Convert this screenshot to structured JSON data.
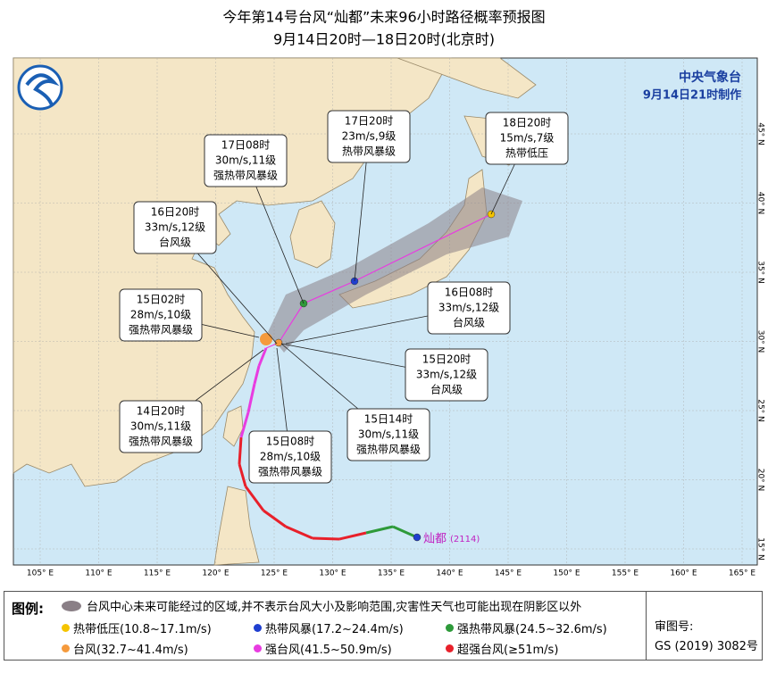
{
  "header": {
    "title": "今年第14号台风“灿都”未来96小时路径概率预报图",
    "subtitle": "9月14日20时—18日20时(北京时)"
  },
  "agency": {
    "name": "中央气象台",
    "issued": "9月14日21时制作"
  },
  "callouts": [
    {
      "time": "18日20时",
      "wind": "15m/s,7级",
      "level": "热带低压"
    },
    {
      "time": "17日20时",
      "wind": "23m/s,9级",
      "level": "热带风暴级"
    },
    {
      "time": "17日08时",
      "wind": "30m/s,11级",
      "level": "强热带风暴级"
    },
    {
      "time": "16日20时",
      "wind": "33m/s,12级",
      "level": "台风级"
    },
    {
      "time": "16日08时",
      "wind": "33m/s,12级",
      "level": "台风级"
    },
    {
      "time": "15日02时",
      "wind": "28m/s,10级",
      "level": "强热带风暴级"
    },
    {
      "time": "15日20时",
      "wind": "33m/s,12级",
      "level": "台风级"
    },
    {
      "time": "15日14时",
      "wind": "30m/s,11级",
      "level": "强热带风暴级"
    },
    {
      "time": "14日20时",
      "wind": "30m/s,11级",
      "level": "强热带风暴级"
    },
    {
      "time": "15日08时",
      "wind": "28m/s,10级",
      "level": "强热带风暴级"
    }
  ],
  "storm_label": {
    "name": "灿都",
    "code": "(2114)"
  },
  "lon_labels": [
    "105° E",
    "110° E",
    "115° E",
    "120° E",
    "125° E",
    "130° E",
    "135° E",
    "140° E",
    "145° E",
    "150° E",
    "155° E",
    "160° E",
    "165° E"
  ],
  "lat_labels": [
    "45° N",
    "40° N",
    "35° N",
    "30° N",
    "25° N",
    "20° N",
    "15° N"
  ],
  "legend": {
    "title": "图例:",
    "cone": "台风中心未来可能经过的区域,并不表示台风大小及影响范围,灾害性天气也可能出现在阴影区以外",
    "items": [
      {
        "label": "热带低压(10.8~17.1m/s)",
        "color": "#f5c400"
      },
      {
        "label": "热带风暴(17.2~24.4m/s)",
        "color": "#1f3fd0"
      },
      {
        "label": "强热带风暴(24.5~32.6m/s)",
        "color": "#2e9a3a"
      },
      {
        "label": "台风(32.7~41.4m/s)",
        "color": "#f59a3c"
      },
      {
        "label": "强台风(41.5~50.9m/s)",
        "color": "#e83ce0"
      },
      {
        "label": "超强台风(≥51m/s)",
        "color": "#e8202a"
      }
    ]
  },
  "approval": {
    "label": "审图号:",
    "number": "GS (2019) 3082号"
  }
}
